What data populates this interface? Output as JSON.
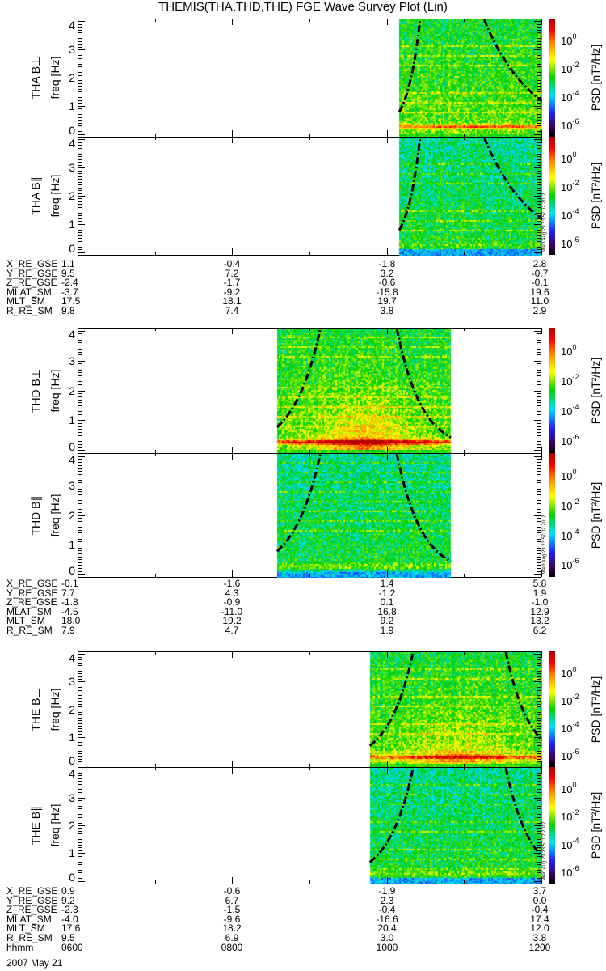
{
  "title": "THEMIS(THA,THD,THE) FGE Wave Survey Plot (Lin)",
  "colors": {
    "colormap": [
      "#000000",
      "#3a0060",
      "#2020ff",
      "#00e0ff",
      "#00d000",
      "#ffff00",
      "#ff8000",
      "#ff0000",
      "#b00000"
    ],
    "curve": "#000000"
  },
  "colorbar": {
    "label": "PSD [nT²/Hz]",
    "ticks": [
      {
        "base": "10",
        "exp": "0",
        "log": 0
      },
      {
        "base": "10",
        "exp": "-2",
        "log": -2
      },
      {
        "base": "10",
        "exp": "-4",
        "log": -4
      },
      {
        "base": "10",
        "exp": "-6",
        "log": -6
      }
    ],
    "log_range": [
      -6.8,
      1.55
    ]
  },
  "timestamp": "Wed Aug 29 23:57:02 2012",
  "chart_data": {
    "type": "heatmap",
    "title": "THEMIS(THA,THD,THE) FGE Wave Survey Plot (Lin)",
    "xlabel": "hhmm",
    "x_range_hours": [
      6,
      12
    ],
    "x_tick_labels": [
      "0600",
      "0800",
      "1000",
      "1200"
    ],
    "ylabel": "freq [Hz]",
    "ylim": [
      -0.1,
      4.1
    ],
    "y_tick_labels": [
      "0",
      "1",
      "2",
      "3",
      "4"
    ],
    "date": "2007 May 21",
    "panels": [
      {
        "name": "THA B⊥",
        "probe": "THA",
        "comp": "perp",
        "data_hours": [
          10.15,
          12.0
        ],
        "band_strength": 1.0,
        "blob": 0,
        "curves": [
          [
            [
              10.15,
              0.8
            ],
            [
              10.42,
              4.1
            ]
          ],
          [
            [
              11.25,
              4.1
            ],
            [
              12.0,
              1.2
            ]
          ]
        ]
      },
      {
        "name": "THA B∥",
        "probe": "THA",
        "comp": "par",
        "data_hours": [
          10.15,
          12.0
        ],
        "band_strength": 0.2,
        "blob": 0,
        "curves": [
          [
            [
              10.15,
              0.8
            ],
            [
              10.42,
              4.1
            ]
          ],
          [
            [
              11.25,
              4.1
            ],
            [
              12.0,
              1.2
            ]
          ]
        ]
      },
      {
        "name": "THD B⊥",
        "probe": "THD",
        "comp": "perp",
        "data_hours": [
          8.57,
          10.82
        ],
        "band_strength": 1.3,
        "blob": 1,
        "curves": [
          [
            [
              8.57,
              0.8
            ],
            [
              9.13,
              4.1
            ]
          ],
          [
            [
              10.12,
              4.1
            ],
            [
              10.82,
              0.45
            ]
          ]
        ]
      },
      {
        "name": "THD B∥",
        "probe": "THD",
        "comp": "par",
        "data_hours": [
          8.57,
          10.82
        ],
        "band_strength": 0.3,
        "blob": 0,
        "curves": [
          [
            [
              8.57,
              0.8
            ],
            [
              9.13,
              4.1
            ]
          ],
          [
            [
              10.12,
              4.1
            ],
            [
              10.82,
              0.45
            ]
          ]
        ]
      },
      {
        "name": "THE B⊥",
        "probe": "THE",
        "comp": "perp",
        "data_hours": [
          9.77,
          12.0
        ],
        "band_strength": 1.1,
        "blob": 0.6,
        "curves": [
          [
            [
              9.77,
              0.7
            ],
            [
              10.33,
              4.1
            ]
          ],
          [
            [
              11.53,
              4.1
            ],
            [
              12.0,
              0.9
            ]
          ]
        ]
      },
      {
        "name": "THE B∥",
        "probe": "THE",
        "comp": "par",
        "data_hours": [
          9.77,
          12.0
        ],
        "band_strength": 0.3,
        "blob": 0,
        "curves": [
          [
            [
              9.77,
              0.7
            ],
            [
              10.33,
              4.1
            ]
          ],
          [
            [
              11.53,
              4.1
            ],
            [
              12.0,
              0.9
            ]
          ]
        ]
      }
    ]
  },
  "ephemeris": [
    {
      "rows": [
        {
          "label": "X_RE_GSE",
          "values": [
            "1.1",
            "-0.4",
            "-1.8",
            "2.8"
          ]
        },
        {
          "label": "Y_RE_GSE",
          "values": [
            "9.5",
            "7.2",
            "3.2",
            "-0.7"
          ]
        },
        {
          "label": "Z_RE_GSE",
          "values": [
            "-2.4",
            "-1.7",
            "-0.6",
            "-0.1"
          ]
        },
        {
          "label": "MLAT_SM",
          "values": [
            "-3.7",
            "-9.2",
            "-15.8",
            "19.6"
          ]
        },
        {
          "label": "MLT_SM",
          "values": [
            "17.5",
            "18.1",
            "19.7",
            "11.0"
          ]
        },
        {
          "label": "R_RE_SM",
          "values": [
            "9.8",
            "7.4",
            "3.8",
            "2.9"
          ]
        }
      ]
    },
    {
      "rows": [
        {
          "label": "X_RE_GSE",
          "values": [
            "-0.1",
            "-1.6",
            "1.4",
            "5.8"
          ]
        },
        {
          "label": "Y_RE_GSE",
          "values": [
            "7.7",
            "4.3",
            "-1.2",
            "1.9"
          ]
        },
        {
          "label": "Z_RE_GSE",
          "values": [
            "-1.8",
            "-0.9",
            "0.1",
            "-1.0"
          ]
        },
        {
          "label": "MLAT_SM",
          "values": [
            "-4.5",
            "-11.0",
            "16.8",
            "12.9"
          ]
        },
        {
          "label": "MLT_SM",
          "values": [
            "18.0",
            "19.2",
            "9.2",
            "13.2"
          ]
        },
        {
          "label": "R_RE_SM",
          "values": [
            "7.9",
            "4.7",
            "1.9",
            "6.2"
          ]
        }
      ]
    },
    {
      "rows": [
        {
          "label": "X_RE_GSE",
          "values": [
            "0.9",
            "-0.6",
            "-1.9",
            "3.7"
          ]
        },
        {
          "label": "Y_RE_GSE",
          "values": [
            "9.2",
            "6.7",
            "2.3",
            "0.0"
          ]
        },
        {
          "label": "Z_RE_GSE",
          "values": [
            "-2.3",
            "-1.5",
            "-0.4",
            "-0.4"
          ]
        },
        {
          "label": "MLAT_SM",
          "values": [
            "-4.0",
            "-9.6",
            "-16.6",
            "17.4"
          ]
        },
        {
          "label": "MLT_SM",
          "values": [
            "17.6",
            "18.2",
            "20.4",
            "12.0"
          ]
        },
        {
          "label": "R_RE_SM",
          "values": [
            "9.5",
            "6.9",
            "3.0",
            "3.8"
          ]
        },
        {
          "label": "hhmm",
          "values": [
            "0600",
            "0800",
            "1000",
            "1200"
          ]
        }
      ]
    }
  ]
}
